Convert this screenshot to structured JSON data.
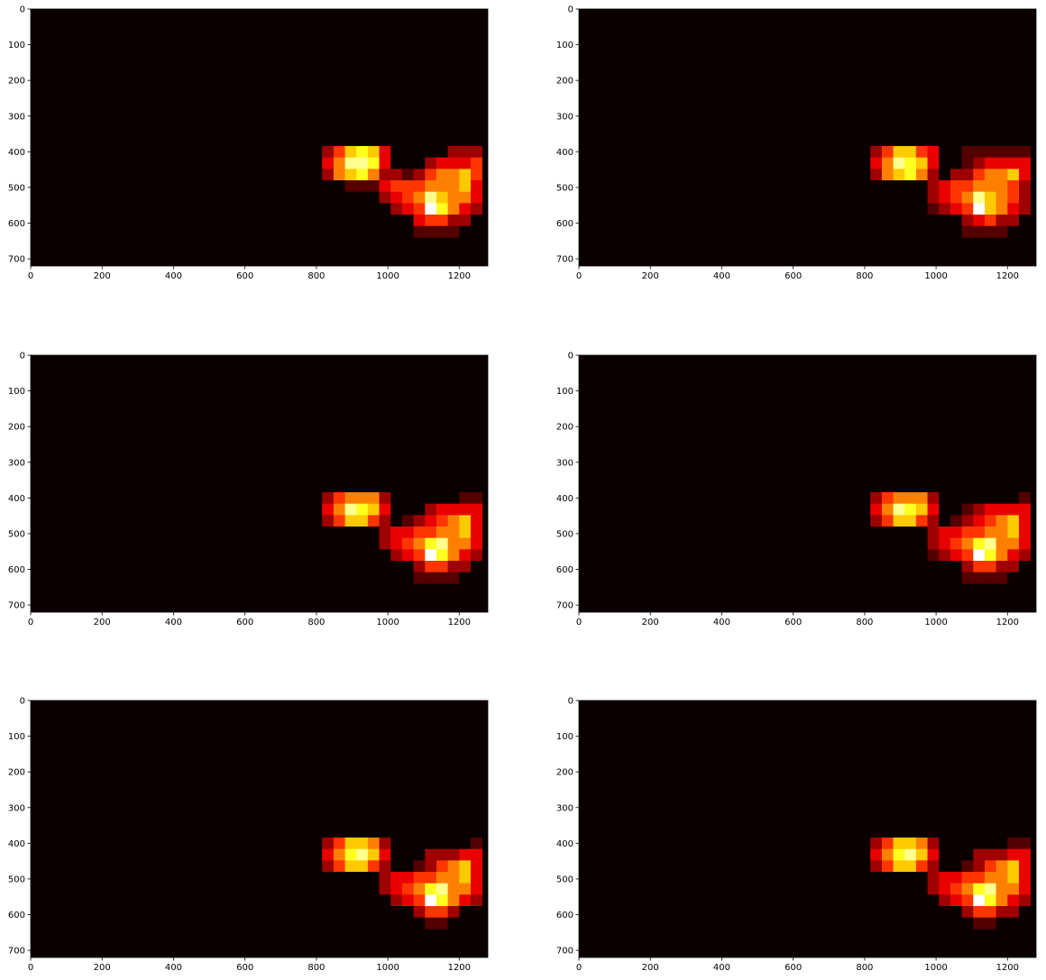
{
  "chart_data": [
    {
      "type": "heatmap",
      "colormap": "hot",
      "x": [
        816,
        848,
        880,
        912,
        944,
        976,
        1008,
        1040,
        1072,
        1104,
        1136,
        1168,
        1200,
        1232,
        1264
      ],
      "y": [
        384,
        416,
        448,
        480,
        512,
        544,
        576,
        608,
        640
      ],
      "z": [
        [
          2,
          4,
          6,
          7,
          6,
          3,
          0,
          0,
          0,
          0,
          0,
          2,
          2,
          2
        ],
        [
          3,
          5,
          8,
          8,
          7,
          3,
          0,
          0,
          0,
          2,
          3,
          3,
          3,
          4
        ],
        [
          2,
          5,
          6,
          7,
          5,
          2,
          2,
          1,
          2,
          4,
          5,
          5,
          6,
          4
        ],
        [
          0,
          0,
          1,
          1,
          1,
          3,
          4,
          4,
          4,
          5,
          5,
          5,
          6,
          3
        ],
        [
          0,
          0,
          0,
          0,
          0,
          2,
          3,
          4,
          5,
          8,
          6,
          5,
          5,
          3
        ],
        [
          0,
          0,
          0,
          0,
          0,
          0,
          2,
          3,
          4,
          9,
          7,
          5,
          3,
          2
        ],
        [
          0,
          0,
          0,
          0,
          0,
          0,
          0,
          0,
          3,
          4,
          4,
          2,
          2,
          0
        ],
        [
          0,
          0,
          0,
          0,
          0,
          0,
          0,
          0,
          1,
          1,
          1,
          1,
          0,
          0
        ]
      ],
      "xlim": [
        0,
        1280
      ],
      "ylim": [
        720,
        0
      ],
      "xticks": [
        0,
        200,
        400,
        600,
        800,
        1000,
        1200
      ],
      "yticks": [
        0,
        100,
        200,
        300,
        400,
        500,
        600,
        700
      ]
    },
    {
      "type": "heatmap",
      "colormap": "hot",
      "x": [
        816,
        848,
        880,
        912,
        944,
        976,
        1008,
        1040,
        1072,
        1104,
        1136,
        1168,
        1200,
        1232,
        1264
      ],
      "y": [
        384,
        416,
        448,
        480,
        512,
        544,
        576,
        608,
        640
      ],
      "z": [
        [
          2,
          4,
          6,
          6,
          4,
          3,
          0,
          0,
          1,
          1,
          1,
          1,
          1,
          1
        ],
        [
          3,
          5,
          8,
          7,
          6,
          3,
          0,
          0,
          1,
          2,
          3,
          3,
          3,
          3
        ],
        [
          2,
          5,
          6,
          7,
          5,
          2,
          0,
          2,
          2,
          4,
          5,
          5,
          6,
          3
        ],
        [
          0,
          0,
          0,
          0,
          0,
          2,
          3,
          4,
          4,
          5,
          5,
          5,
          4,
          2
        ],
        [
          0,
          0,
          0,
          0,
          0,
          2,
          3,
          4,
          5,
          8,
          6,
          5,
          4,
          2
        ],
        [
          0,
          0,
          0,
          0,
          0,
          1,
          2,
          3,
          4,
          9,
          6,
          5,
          3,
          2
        ],
        [
          0,
          0,
          0,
          0,
          0,
          0,
          0,
          0,
          2,
          3,
          4,
          2,
          2,
          0
        ],
        [
          0,
          0,
          0,
          0,
          0,
          0,
          0,
          0,
          1,
          1,
          1,
          1,
          0,
          0
        ]
      ],
      "xlim": [
        0,
        1280
      ],
      "ylim": [
        720,
        0
      ],
      "xticks": [
        0,
        200,
        400,
        600,
        800,
        1000,
        1200
      ],
      "yticks": [
        0,
        100,
        200,
        300,
        400,
        500,
        600,
        700
      ]
    },
    {
      "type": "heatmap",
      "colormap": "hot",
      "x": [
        816,
        848,
        880,
        912,
        944,
        976,
        1008,
        1040,
        1072,
        1104,
        1136,
        1168,
        1200,
        1232,
        1264
      ],
      "y": [
        384,
        416,
        448,
        480,
        512,
        544,
        576,
        608,
        640
      ],
      "z": [
        [
          2,
          4,
          5,
          5,
          5,
          2,
          0,
          0,
          0,
          0,
          0,
          0,
          1,
          1
        ],
        [
          3,
          5,
          8,
          7,
          6,
          3,
          0,
          0,
          0,
          2,
          3,
          3,
          3,
          3
        ],
        [
          2,
          4,
          6,
          6,
          4,
          2,
          0,
          1,
          2,
          3,
          4,
          5,
          6,
          3
        ],
        [
          0,
          0,
          0,
          0,
          0,
          2,
          3,
          3,
          4,
          4,
          5,
          5,
          6,
          3
        ],
        [
          0,
          0,
          0,
          0,
          0,
          2,
          3,
          4,
          5,
          7,
          8,
          5,
          5,
          3
        ],
        [
          0,
          0,
          0,
          0,
          0,
          0,
          2,
          3,
          4,
          9,
          7,
          5,
          3,
          2
        ],
        [
          0,
          0,
          0,
          0,
          0,
          0,
          0,
          0,
          2,
          4,
          4,
          2,
          2,
          0
        ],
        [
          0,
          0,
          0,
          0,
          0,
          0,
          0,
          0,
          1,
          1,
          1,
          1,
          0,
          0
        ]
      ],
      "xlim": [
        0,
        1280
      ],
      "ylim": [
        720,
        0
      ],
      "xticks": [
        0,
        200,
        400,
        600,
        800,
        1000,
        1200
      ],
      "yticks": [
        0,
        100,
        200,
        300,
        400,
        500,
        600,
        700
      ]
    },
    {
      "type": "heatmap",
      "colormap": "hot",
      "x": [
        816,
        848,
        880,
        912,
        944,
        976,
        1008,
        1040,
        1072,
        1104,
        1136,
        1168,
        1200,
        1232,
        1264
      ],
      "y": [
        384,
        416,
        448,
        480,
        512,
        544,
        576,
        608,
        640
      ],
      "z": [
        [
          2,
          4,
          5,
          5,
          5,
          2,
          0,
          0,
          0,
          0,
          0,
          0,
          0,
          1
        ],
        [
          3,
          5,
          8,
          7,
          6,
          3,
          0,
          0,
          1,
          2,
          3,
          3,
          3,
          3
        ],
        [
          2,
          4,
          6,
          6,
          4,
          2,
          0,
          1,
          2,
          3,
          4,
          5,
          6,
          3
        ],
        [
          0,
          0,
          0,
          0,
          0,
          2,
          3,
          3,
          4,
          4,
          5,
          5,
          6,
          3
        ],
        [
          0,
          0,
          0,
          0,
          0,
          2,
          3,
          4,
          5,
          7,
          8,
          5,
          5,
          3
        ],
        [
          0,
          0,
          0,
          0,
          0,
          1,
          2,
          3,
          4,
          9,
          7,
          5,
          3,
          2
        ],
        [
          0,
          0,
          0,
          0,
          0,
          0,
          0,
          0,
          2,
          4,
          4,
          2,
          2,
          0
        ],
        [
          0,
          0,
          0,
          0,
          0,
          0,
          0,
          0,
          1,
          1,
          1,
          1,
          0,
          0
        ]
      ],
      "xlim": [
        0,
        1280
      ],
      "ylim": [
        720,
        0
      ],
      "xticks": [
        0,
        200,
        400,
        600,
        800,
        1000,
        1200
      ],
      "yticks": [
        0,
        100,
        200,
        300,
        400,
        500,
        600,
        700
      ]
    },
    {
      "type": "heatmap",
      "colormap": "hot",
      "x": [
        816,
        848,
        880,
        912,
        944,
        976,
        1008,
        1040,
        1072,
        1104,
        1136,
        1168,
        1200,
        1232,
        1264
      ],
      "y": [
        384,
        416,
        448,
        480,
        512,
        544,
        576,
        608,
        640
      ],
      "z": [
        [
          2,
          4,
          6,
          6,
          5,
          2,
          0,
          0,
          0,
          0,
          0,
          0,
          0,
          1
        ],
        [
          3,
          5,
          7,
          8,
          6,
          3,
          0,
          0,
          0,
          2,
          2,
          2,
          3,
          3
        ],
        [
          2,
          4,
          6,
          6,
          4,
          2,
          0,
          0,
          1,
          2,
          4,
          5,
          6,
          3
        ],
        [
          0,
          0,
          0,
          0,
          0,
          2,
          3,
          3,
          4,
          4,
          5,
          5,
          6,
          3
        ],
        [
          0,
          0,
          0,
          0,
          0,
          2,
          3,
          4,
          5,
          7,
          8,
          5,
          5,
          3
        ],
        [
          0,
          0,
          0,
          0,
          0,
          0,
          2,
          3,
          4,
          9,
          7,
          5,
          3,
          2
        ],
        [
          0,
          0,
          0,
          0,
          0,
          0,
          0,
          0,
          2,
          4,
          4,
          2,
          0,
          0
        ],
        [
          0,
          0,
          0,
          0,
          0,
          0,
          0,
          0,
          0,
          1,
          1,
          0,
          0,
          0
        ]
      ],
      "xlim": [
        0,
        1280
      ],
      "ylim": [
        720,
        0
      ],
      "xticks": [
        0,
        200,
        400,
        600,
        800,
        1000,
        1200
      ],
      "yticks": [
        0,
        100,
        200,
        300,
        400,
        500,
        600,
        700
      ]
    },
    {
      "type": "heatmap",
      "colormap": "hot",
      "x": [
        816,
        848,
        880,
        912,
        944,
        976,
        1008,
        1040,
        1072,
        1104,
        1136,
        1168,
        1200,
        1232,
        1264
      ],
      "y": [
        384,
        416,
        448,
        480,
        512,
        544,
        576,
        608,
        640
      ],
      "z": [
        [
          2,
          4,
          6,
          6,
          5,
          2,
          0,
          0,
          0,
          0,
          0,
          0,
          1,
          1
        ],
        [
          3,
          5,
          7,
          8,
          6,
          3,
          0,
          0,
          0,
          2,
          2,
          2,
          3,
          3
        ],
        [
          2,
          4,
          6,
          6,
          4,
          2,
          0,
          0,
          1,
          2,
          4,
          5,
          6,
          3
        ],
        [
          0,
          0,
          0,
          0,
          0,
          2,
          3,
          3,
          4,
          4,
          5,
          5,
          6,
          3
        ],
        [
          0,
          0,
          0,
          0,
          0,
          2,
          3,
          4,
          5,
          7,
          8,
          5,
          5,
          3
        ],
        [
          0,
          0,
          0,
          0,
          0,
          0,
          2,
          3,
          4,
          9,
          7,
          5,
          3,
          2
        ],
        [
          0,
          0,
          0,
          0,
          0,
          0,
          0,
          0,
          2,
          4,
          4,
          2,
          2,
          0
        ],
        [
          0,
          0,
          0,
          0,
          0,
          0,
          0,
          0,
          0,
          1,
          1,
          0,
          0,
          0
        ]
      ],
      "xlim": [
        0,
        1280
      ],
      "ylim": [
        720,
        0
      ],
      "xticks": [
        0,
        200,
        400,
        600,
        800,
        1000,
        1200
      ],
      "yticks": [
        0,
        100,
        200,
        300,
        400,
        500,
        600,
        700
      ]
    }
  ]
}
